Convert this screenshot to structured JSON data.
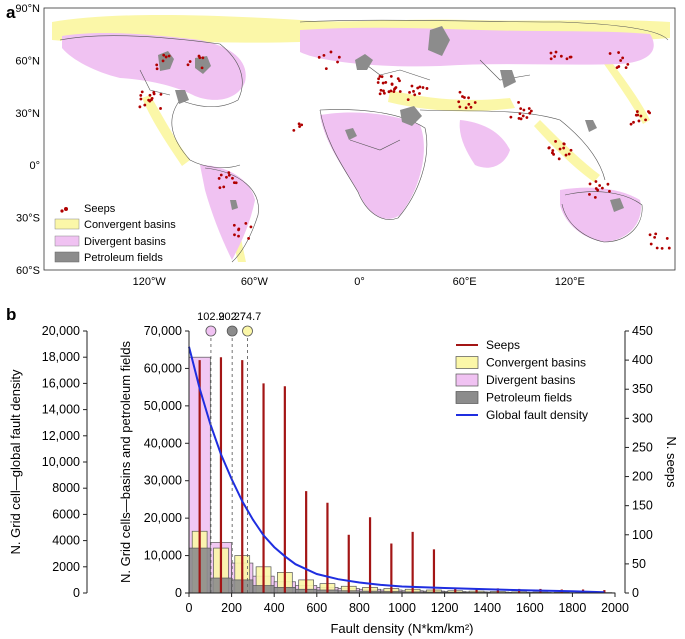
{
  "panel_a": {
    "letter": "a",
    "lat_labels": [
      "90°N",
      "60°N",
      "30°N",
      "0°",
      "30°S",
      "60°S"
    ],
    "lat_values": [
      90,
      60,
      30,
      0,
      -30,
      -60
    ],
    "lon_labels": [
      "120°W",
      "60°W",
      "0°",
      "60°E",
      "120°E"
    ],
    "lon_values": [
      -120,
      -60,
      0,
      60,
      120
    ],
    "legend": [
      {
        "label": "Seeps",
        "color": "#b00000",
        "kind": "dot"
      },
      {
        "label": "Convergent basins",
        "color": "#fbf7a8",
        "kind": "box"
      },
      {
        "label": "Divergent basins",
        "color": "#f0c2f2",
        "kind": "box"
      },
      {
        "label": "Petroleum fields",
        "color": "#8c8c8c",
        "kind": "box"
      }
    ],
    "colors": {
      "land": "#ffffff",
      "border": "#555555",
      "convergent": "#fbf7a8",
      "divergent": "#f0c2f2",
      "petroleum": "#8c8c8c",
      "seeps": "#b00000"
    }
  },
  "chart_data": {
    "type": "bar",
    "panel_letter": "b",
    "xlabel": "Fault density (N*km/km²)",
    "xlim": [
      0,
      2000
    ],
    "xticks": [
      0,
      200,
      400,
      600,
      800,
      1000,
      1200,
      1400,
      1600,
      1800,
      2000
    ],
    "bin_width": 100,
    "bin_centers": [
      50,
      150,
      250,
      350,
      450,
      550,
      650,
      750,
      850,
      950,
      1050,
      1150,
      1250,
      1350,
      1450,
      1550,
      1650,
      1750,
      1850,
      1950
    ],
    "axes": {
      "left_outer": {
        "label": "N. Grid cell—global fault density",
        "lim": [
          0,
          20000
        ],
        "ticks": [
          0,
          2000,
          4000,
          6000,
          8000,
          10000,
          12000,
          14000,
          16000,
          18000,
          20000
        ],
        "tick_labels": [
          "0",
          "2000",
          "4000",
          "6000",
          "8000",
          "10,000",
          "12,000",
          "14,000",
          "16,000",
          "18,000",
          "20,000"
        ]
      },
      "left_inner": {
        "label": "N. Grid cells—basins and petroleum fields",
        "lim": [
          0,
          70000
        ],
        "ticks": [
          0,
          10000,
          20000,
          30000,
          40000,
          50000,
          60000,
          70000
        ],
        "tick_labels": [
          "0",
          "10,000",
          "20,000",
          "30,000",
          "40,000",
          "50,000",
          "60,000",
          "70,000"
        ]
      },
      "right": {
        "label": "N. seeps",
        "lim": [
          0,
          450
        ],
        "ticks": [
          0,
          50,
          100,
          150,
          200,
          250,
          300,
          350,
          400,
          450
        ],
        "tick_labels": [
          "0",
          "50",
          "100",
          "150",
          "200",
          "250",
          "300",
          "350",
          "400",
          "450"
        ]
      }
    },
    "series": [
      {
        "name": "Seeps",
        "kind": "stem",
        "axis": "right",
        "color": "#a31515",
        "values": [
          400,
          405,
          400,
          360,
          355,
          175,
          155,
          100,
          130,
          85,
          105,
          75,
          8,
          7,
          8,
          7,
          7,
          6,
          6,
          5
        ]
      },
      {
        "name": "Convergent basins",
        "kind": "bar",
        "axis": "left_inner",
        "color": "#fbf7a8",
        "edge": "#555555",
        "values": [
          16500,
          12000,
          10000,
          7000,
          5500,
          3500,
          2500,
          1800,
          1500,
          1200,
          1000,
          800,
          600,
          500,
          400,
          300,
          250,
          200,
          150,
          100
        ]
      },
      {
        "name": "Divergent basins",
        "kind": "bar",
        "axis": "left_inner",
        "color": "#f0c2f2",
        "edge": "#555555",
        "values": [
          63000,
          13500,
          8000,
          4500,
          3000,
          2000,
          1500,
          1200,
          1000,
          800,
          600,
          500,
          400,
          300,
          250,
          200,
          150,
          100,
          80,
          60
        ]
      },
      {
        "name": "Petroleum fields",
        "kind": "bar",
        "axis": "left_inner",
        "color": "#8c8c8c",
        "edge": "#555555",
        "values": [
          12000,
          4000,
          3500,
          2000,
          1500,
          1000,
          800,
          600,
          500,
          400,
          300,
          250,
          200,
          150,
          120,
          100,
          80,
          60,
          50,
          40
        ]
      },
      {
        "name": "Global fault density",
        "kind": "line",
        "axis": "left_outer",
        "color": "#1f2ee0",
        "x": [
          0,
          50,
          100,
          150,
          200,
          250,
          300,
          350,
          400,
          450,
          500,
          600,
          700,
          800,
          900,
          1000,
          1200,
          1400,
          1600,
          1800,
          1950
        ],
        "values": [
          18800,
          15600,
          12900,
          10600,
          8700,
          7000,
          5600,
          4400,
          3500,
          2800,
          2200,
          1450,
          1050,
          800,
          620,
          500,
          380,
          280,
          200,
          130,
          60
        ]
      }
    ],
    "markers": [
      {
        "label": "102.9",
        "x": 102.9,
        "color": "#f0c2f2"
      },
      {
        "label": "202.7",
        "x": 202.7,
        "color": "#8c8c8c"
      },
      {
        "label": "274.7",
        "x": 274.7,
        "color": "#fbf7a8"
      }
    ],
    "legend": {
      "placement": "top-right",
      "entries": [
        {
          "label": "Seeps",
          "kind": "line",
          "color": "#a31515"
        },
        {
          "label": "Convergent basins",
          "kind": "box",
          "color": "#fbf7a8"
        },
        {
          "label": "Divergent basins",
          "kind": "box",
          "color": "#f0c2f2"
        },
        {
          "label": "Petroleum fields",
          "kind": "box",
          "color": "#8c8c8c"
        },
        {
          "label": "Global fault density",
          "kind": "line",
          "color": "#1f2ee0"
        }
      ]
    }
  }
}
